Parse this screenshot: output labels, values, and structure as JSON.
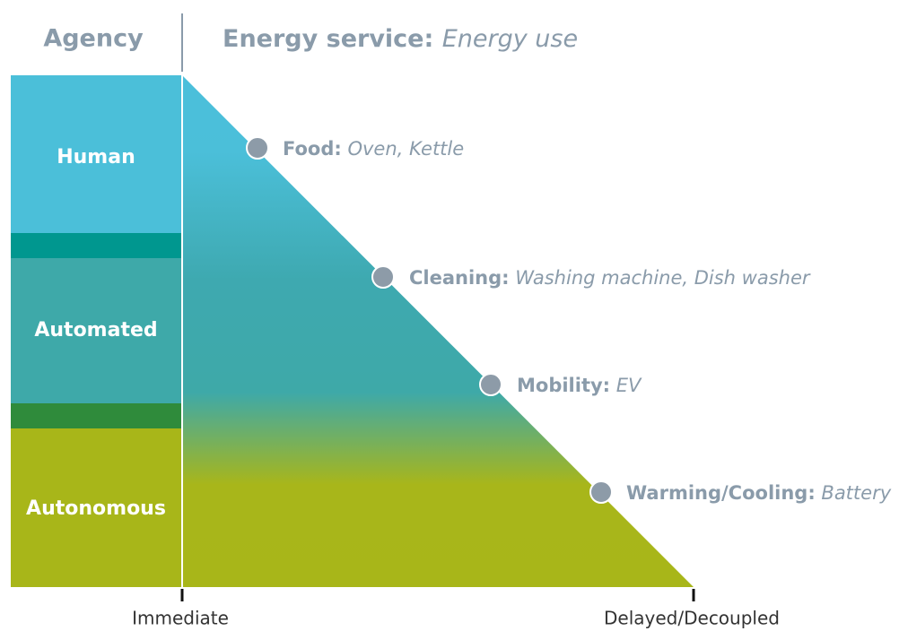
{
  "header": {
    "agency": "Agency",
    "service_label": "Energy service:",
    "service_value": "Energy use"
  },
  "agency_levels": [
    "Human",
    "Automated",
    "Autonomous"
  ],
  "services": [
    {
      "name": "Food:",
      "devices": "Oven, Kettle"
    },
    {
      "name": "Cleaning:",
      "devices": "Washing machine, Dish washer"
    },
    {
      "name": "Mobility:",
      "devices": "EV"
    },
    {
      "name": "Warming/Cooling:",
      "devices": "Battery"
    }
  ],
  "axis": {
    "start": "Immediate",
    "end": "Delayed/Decoupled"
  }
}
